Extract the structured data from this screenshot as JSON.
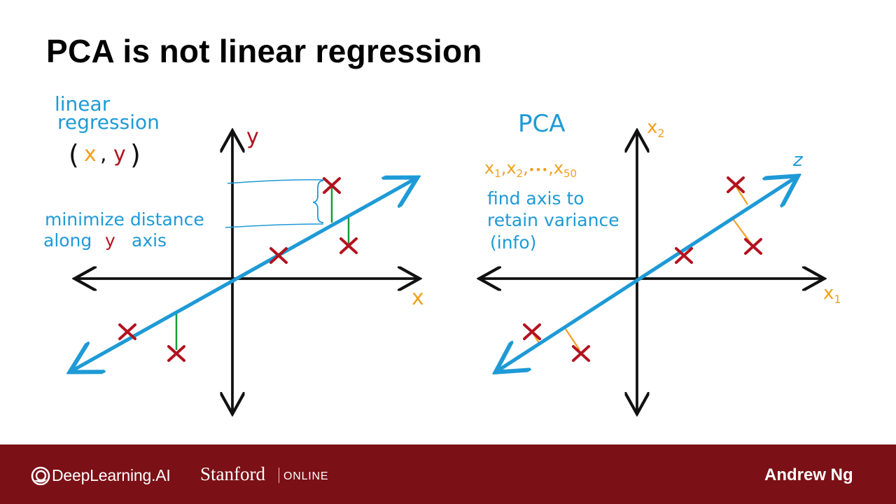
{
  "slide": {
    "title": "PCA is not linear regression"
  },
  "left_panel": {
    "heading_line1": "linear",
    "heading_line2": "regression",
    "pair_open": "(",
    "pair_x": "x",
    "pair_comma": ",",
    "pair_y": "y",
    "pair_close": ")",
    "note_line1": "minimize distance",
    "note_line2_a": "along",
    "note_line2_y": "y",
    "note_line2_b": "axis",
    "axis_x_label": "x",
    "axis_y_label": "y"
  },
  "right_panel": {
    "heading": "PCA",
    "features_x1": "x",
    "features_x1_sub": "1",
    "features_x2": "x",
    "features_x2_sub": "2",
    "features_dots": "•••",
    "features_x50": "x",
    "features_x50_sub": "50",
    "note_line1": "find axis to",
    "note_line2": "retain variance",
    "note_line3": "(info)",
    "axis_x1_label": "x",
    "axis_x1_sub": "1",
    "axis_x2_label": "x",
    "axis_x2_sub": "2",
    "axis_z_label": "z"
  },
  "colors": {
    "blue": "#1e9ad6",
    "red": "#b3121f",
    "orange": "#f0a020",
    "green": "#1a9a3a",
    "black": "#111111",
    "footer": "#7b1016"
  },
  "footer": {
    "brand": "DeepLearning.AI",
    "institution": "Stanford",
    "institution_suffix": "ONLINE",
    "author": "Andrew Ng"
  }
}
